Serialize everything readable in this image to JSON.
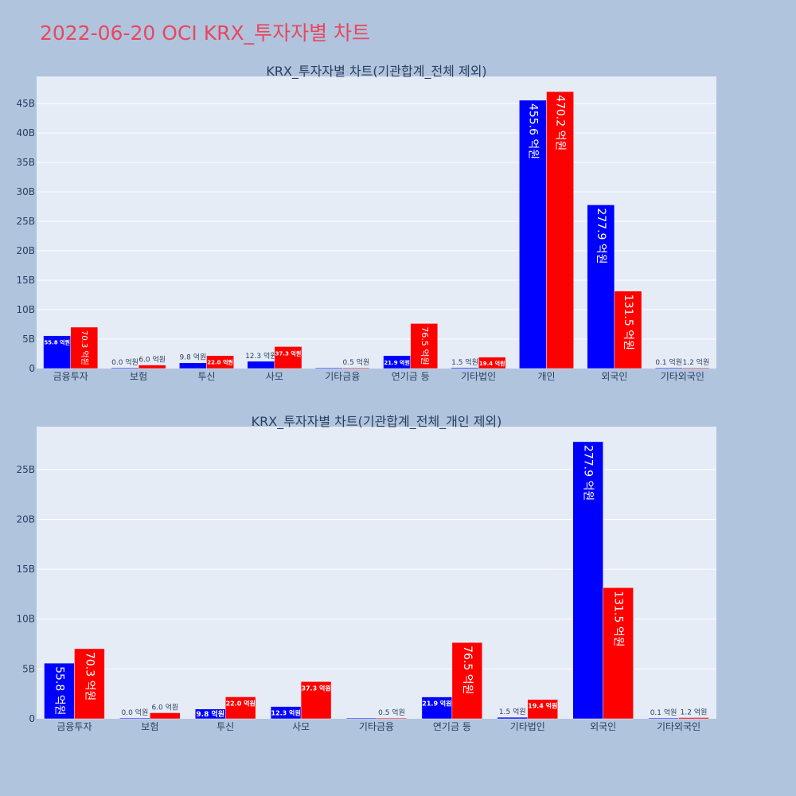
{
  "title": "2022-06-20 OCI KRX_투자자별 차트",
  "colors": {
    "buy": "#0000ff",
    "sell": "#ff0000",
    "plot_bg": "#e5ecf6",
    "page_bg": "#b0c4de",
    "title": "#e8475f"
  },
  "chart_data": [
    {
      "type": "bar",
      "title": "KRX_투자자별 차트(기관합계_전체 제외)",
      "categories": [
        "금융투자",
        "보험",
        "투신",
        "사모",
        "기타금융",
        "연기금 등",
        "기타법인",
        "개인",
        "외국인",
        "기타외국인"
      ],
      "series": [
        {
          "color": "#0000ff",
          "values": [
            5580000000,
            0,
            980000000,
            1230000000,
            0,
            2190000000,
            150000000,
            45560000000,
            27790000000,
            10000000
          ],
          "labels": [
            "55.8 억원",
            "0.0 억원",
            "9.8 억원",
            "12.3 억원",
            "",
            "21.9 억원",
            "1.5 억원",
            "455.6 억원",
            "277.9 억원",
            "0.1 억원"
          ]
        },
        {
          "color": "#ff0000",
          "values": [
            7030000000,
            600000000,
            2200000000,
            3730000000,
            50000000,
            7650000000,
            1940000000,
            47020000000,
            13150000000,
            120000000
          ],
          "labels": [
            "70.3 억원",
            "6.0 억원",
            "22.0 억원",
            "37.3 억원",
            "0.5 억원",
            "76.5 억원",
            "19.4 억원",
            "470.2 억원",
            "131.5 억원",
            "1.2 억원"
          ]
        }
      ],
      "ylim": [
        0,
        49600000000
      ],
      "yticks": [
        0,
        5000000000,
        10000000000,
        15000000000,
        20000000000,
        25000000000,
        30000000000,
        35000000000,
        40000000000,
        45000000000
      ],
      "ytick_labels": [
        "0",
        "5B",
        "10B",
        "15B",
        "20B",
        "25B",
        "30B",
        "35B",
        "40B",
        "45B"
      ],
      "grid": true,
      "legend": "none"
    },
    {
      "type": "bar",
      "title": "KRX_투자자별 차트(기관합계_전체_개인 제외)",
      "categories": [
        "금융투자",
        "보험",
        "투신",
        "사모",
        "기타금융",
        "연기금 등",
        "기타법인",
        "외국인",
        "기타외국인"
      ],
      "series": [
        {
          "color": "#0000ff",
          "values": [
            5580000000,
            0,
            980000000,
            1230000000,
            0,
            2190000000,
            150000000,
            27790000000,
            10000000
          ],
          "labels": [
            "55.8 억원",
            "0.0 억원",
            "9.8 억원",
            "12.3 억원",
            "",
            "21.9 억원",
            "1.5 억원",
            "277.9 억원",
            "0.1 억원"
          ]
        },
        {
          "color": "#ff0000",
          "values": [
            7030000000,
            600000000,
            2200000000,
            3730000000,
            50000000,
            7650000000,
            1940000000,
            13150000000,
            120000000
          ],
          "labels": [
            "70.3 억원",
            "6.0 억원",
            "22.0 억원",
            "37.3 억원",
            "0.5 억원",
            "76.5 억원",
            "19.4 억원",
            "131.5 억원",
            "1.2 억원"
          ]
        }
      ],
      "ylim": [
        0,
        29300000000
      ],
      "yticks": [
        0,
        5000000000,
        10000000000,
        15000000000,
        20000000000,
        25000000000
      ],
      "ytick_labels": [
        "0",
        "5B",
        "10B",
        "15B",
        "20B",
        "25B"
      ],
      "grid": true,
      "legend": "none"
    }
  ]
}
